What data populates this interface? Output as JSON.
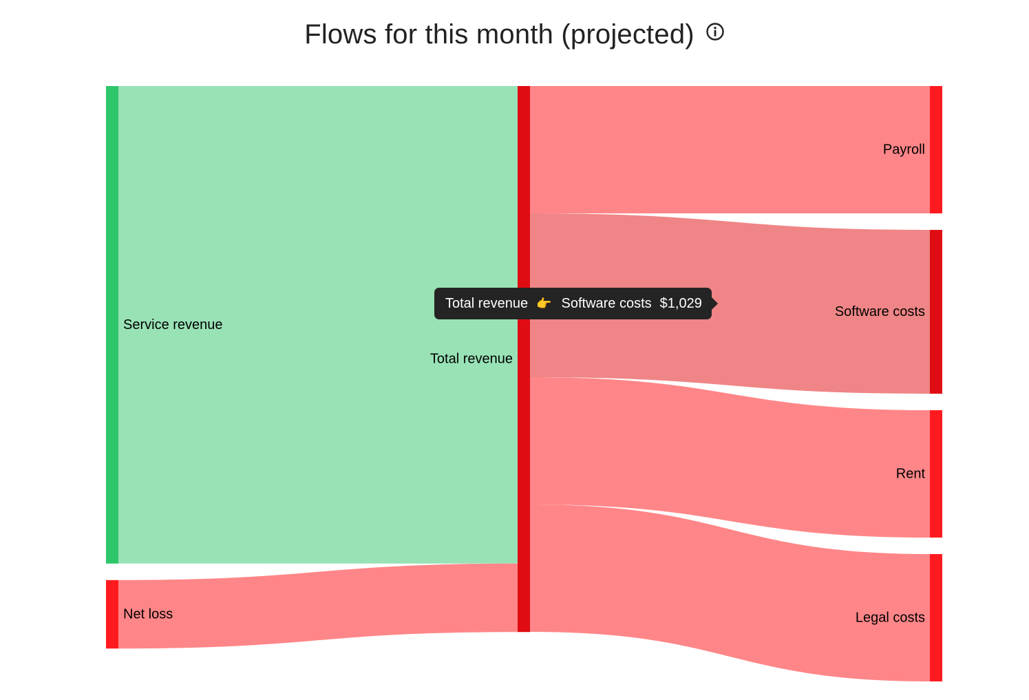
{
  "title": "Flows for this month (projected)",
  "info_icon": "info-circle-icon",
  "chart_data": {
    "type": "sankey",
    "title": "Flows for this month (projected)",
    "nodes": [
      {
        "id": "service_revenue",
        "label": "Service revenue",
        "color": "#2ec66b",
        "column": 0
      },
      {
        "id": "net_loss",
        "label": "Net loss",
        "color": "#ff1a1f",
        "column": 0
      },
      {
        "id": "total_revenue",
        "label": "Total revenue",
        "color": "#e00c13",
        "column": 1
      },
      {
        "id": "payroll",
        "label": "Payroll",
        "color": "#ff1a1f",
        "column": 2
      },
      {
        "id": "software_costs",
        "label": "Software costs",
        "color": "#e00c13",
        "column": 2
      },
      {
        "id": "rent",
        "label": "Rent",
        "color": "#ff1a1f",
        "column": 2
      },
      {
        "id": "legal_costs",
        "label": "Legal costs",
        "color": "#ff1a1f",
        "column": 2
      }
    ],
    "links": [
      {
        "source": "service_revenue",
        "target": "total_revenue",
        "value": 3000,
        "color": "#98e2b6"
      },
      {
        "source": "net_loss",
        "target": "total_revenue",
        "value": 430,
        "color": "#ff8688"
      },
      {
        "source": "total_revenue",
        "target": "payroll",
        "value": 800,
        "color": "#ff8688"
      },
      {
        "source": "total_revenue",
        "target": "software_costs",
        "value": 1029,
        "color": "#ef8586"
      },
      {
        "source": "total_revenue",
        "target": "rent",
        "value": 800,
        "color": "#ff8688"
      },
      {
        "source": "total_revenue",
        "target": "legal_costs",
        "value": 800,
        "color": "#ff8688"
      }
    ],
    "tooltip": {
      "source": "Total revenue",
      "arrow": "👉",
      "target": "Software costs",
      "value": "$1,029"
    }
  }
}
